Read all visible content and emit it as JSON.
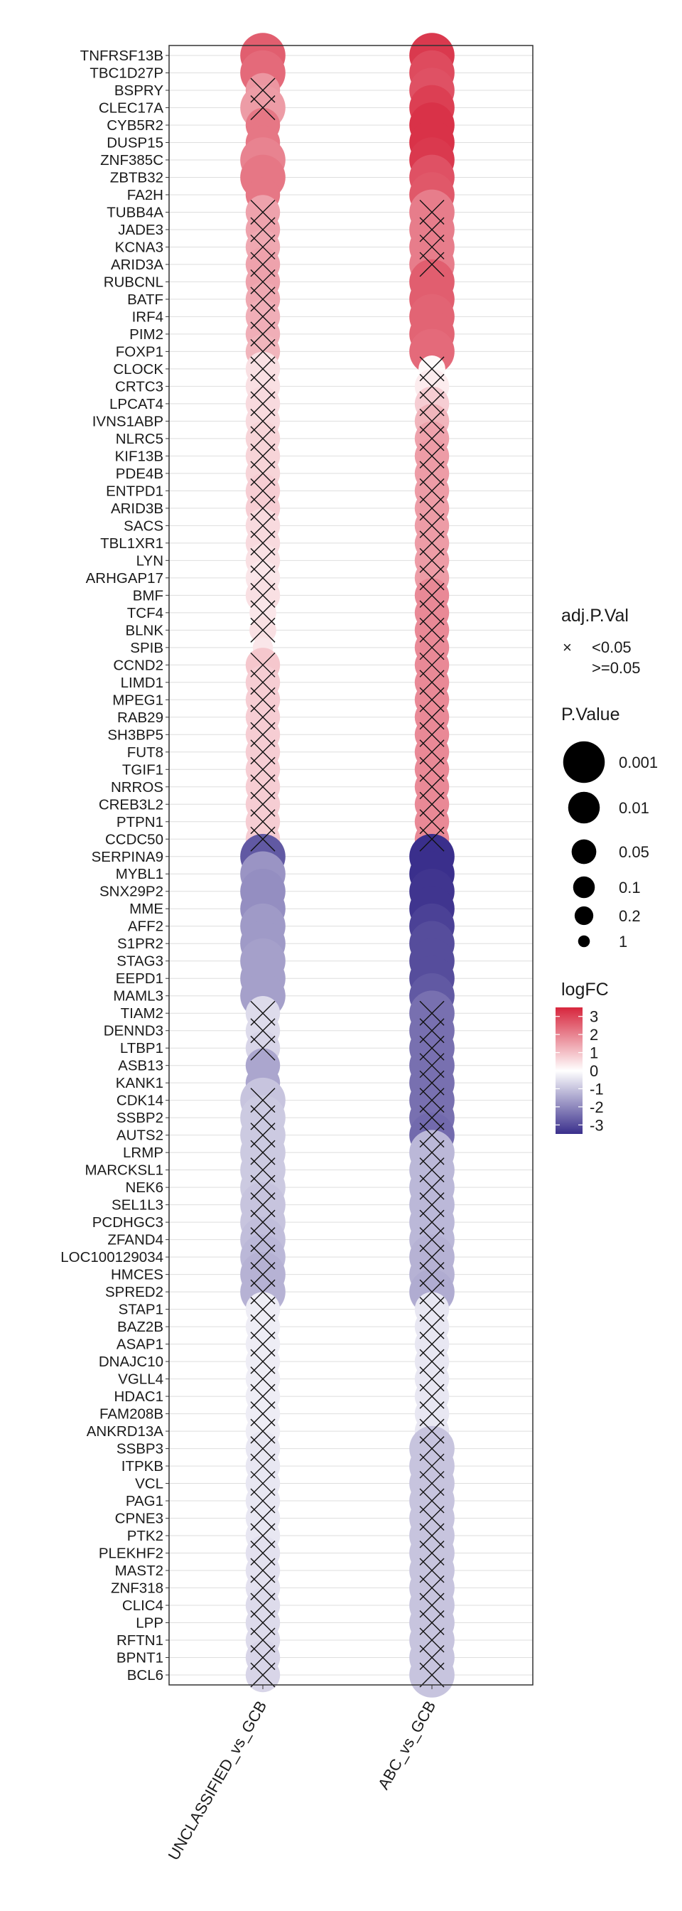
{
  "chart_data": {
    "type": "dot",
    "xlabel": "",
    "ylabel": "",
    "categories_x": [
      "UNCLASSIFIED_vs_GCB",
      "ABC_vs_GCB"
    ],
    "genes": [
      "TNFRSF13B",
      "TBC1D27P",
      "BSPRY",
      "CLEC17A",
      "CYB5R2",
      "DUSP15",
      "ZNF385C",
      "ZBTB32",
      "FA2H",
      "TUBB4A",
      "JADE3",
      "KCNA3",
      "ARID3A",
      "RUBCNL",
      "BATF",
      "IRF4",
      "PIM2",
      "FOXP1",
      "CLOCK",
      "CRTC3",
      "LPCAT4",
      "IVNS1ABP",
      "NLRC5",
      "KIF13B",
      "PDE4B",
      "ENTPD1",
      "ARID3B",
      "SACS",
      "TBL1XR1",
      "LYN",
      "ARHGAP17",
      "BMF",
      "TCF4",
      "BLNK",
      "SPIB",
      "CCND2",
      "LIMD1",
      "MPEG1",
      "RAB29",
      "SH3BP5",
      "FUT8",
      "TGIF1",
      "NRROS",
      "CREB3L2",
      "PTPN1",
      "CCDC50",
      "SERPINA9",
      "MYBL1",
      "SNX29P2",
      "MME",
      "AFF2",
      "S1PR2",
      "STAG3",
      "EEPD1",
      "MAML3",
      "TIAM2",
      "DENND3",
      "LTBP1",
      "ASB13",
      "KANK1",
      "CDK14",
      "SSBP2",
      "AUTS2",
      "LRMP",
      "MARCKSL1",
      "NEK6",
      "SEL1L3",
      "PCDHGC3",
      "ZFAND4",
      "LOC100129034",
      "HMCES",
      "SPRED2",
      "STAP1",
      "BAZ2B",
      "ASAP1",
      "DNAJC10",
      "VGLL4",
      "HDAC1",
      "FAM208B",
      "ANKRD13A",
      "SSBP3",
      "ITPKB",
      "VCL",
      "PAG1",
      "CPNE3",
      "PTK2",
      "PLEKHF2",
      "MAST2",
      "ZNF318",
      "CLIC4",
      "LPP",
      "RFTN1",
      "BPNT1",
      "BCL6"
    ],
    "series": [
      {
        "name": "UNCLASSIFIED_vs_GCB",
        "logFC": [
          2.6,
          2.4,
          1.7,
          1.6,
          2.2,
          2.2,
          2.0,
          2.2,
          2.2,
          1.5,
          1.5,
          1.4,
          1.5,
          1.5,
          1.4,
          1.3,
          1.3,
          1.2,
          0.5,
          0.5,
          0.6,
          0.6,
          0.7,
          0.7,
          0.7,
          0.8,
          0.8,
          0.6,
          0.6,
          0.5,
          0.4,
          0.5,
          0.4,
          0.5,
          0.4,
          0.9,
          0.8,
          0.8,
          0.8,
          0.8,
          0.8,
          0.8,
          0.8,
          0.8,
          0.8,
          0.8,
          -2.8,
          -1.8,
          -1.9,
          -1.9,
          -1.7,
          -1.7,
          -1.6,
          -1.6,
          -1.6,
          -0.6,
          -0.6,
          -0.7,
          -1.5,
          -1.5,
          -1.0,
          -0.9,
          -0.9,
          -0.9,
          -0.9,
          -0.9,
          -1.0,
          -1.0,
          -1.1,
          -1.2,
          -1.3,
          -1.3,
          -0.3,
          -0.3,
          -0.3,
          -0.3,
          -0.3,
          -0.3,
          -0.3,
          -0.3,
          -0.4,
          -0.4,
          -0.4,
          -0.4,
          -0.4,
          -0.4,
          -0.5,
          -0.5,
          -0.5,
          -0.6,
          -0.6,
          -0.6,
          -0.7,
          -0.7
        ],
        "p_value": [
          0.001,
          0.001,
          0.01,
          0.001,
          0.01,
          0.01,
          0.001,
          0.001,
          0.01,
          0.01,
          0.01,
          0.01,
          0.01,
          0.01,
          0.01,
          0.01,
          0.01,
          0.01,
          0.01,
          0.01,
          0.01,
          0.01,
          0.01,
          0.01,
          0.01,
          0.01,
          0.01,
          0.01,
          0.01,
          0.01,
          0.01,
          0.01,
          0.05,
          0.05,
          0.2,
          0.01,
          0.01,
          0.01,
          0.01,
          0.01,
          0.01,
          0.01,
          0.01,
          0.01,
          0.01,
          0.01,
          0.001,
          0.001,
          0.001,
          0.001,
          0.001,
          0.001,
          0.001,
          0.001,
          0.001,
          0.01,
          0.01,
          0.01,
          0.01,
          0.01,
          0.001,
          0.001,
          0.001,
          0.001,
          0.001,
          0.001,
          0.001,
          0.001,
          0.001,
          0.001,
          0.001,
          0.001,
          0.01,
          0.01,
          0.01,
          0.01,
          0.01,
          0.01,
          0.01,
          0.01,
          0.01,
          0.01,
          0.01,
          0.01,
          0.01,
          0.01,
          0.01,
          0.01,
          0.01,
          0.01,
          0.01,
          0.01,
          0.01,
          0.01
        ],
        "adj_p_lt_0_05": [
          false,
          false,
          true,
          true,
          false,
          false,
          false,
          false,
          false,
          true,
          true,
          true,
          true,
          true,
          true,
          true,
          true,
          true,
          true,
          true,
          true,
          true,
          true,
          true,
          true,
          true,
          true,
          true,
          true,
          true,
          true,
          true,
          true,
          true,
          false,
          true,
          true,
          true,
          true,
          true,
          true,
          true,
          true,
          true,
          true,
          true,
          false,
          false,
          false,
          false,
          false,
          false,
          false,
          false,
          false,
          true,
          true,
          true,
          false,
          false,
          true,
          true,
          true,
          true,
          true,
          true,
          true,
          true,
          true,
          true,
          true,
          true,
          true,
          true,
          true,
          true,
          true,
          true,
          true,
          true,
          true,
          true,
          true,
          true,
          true,
          true,
          true,
          true,
          true,
          true,
          true,
          true,
          true,
          true
        ]
      },
      {
        "name": "ABC_vs_GCB",
        "logFC": [
          3.2,
          2.9,
          2.8,
          3.1,
          3.3,
          3.3,
          3.2,
          2.8,
          2.7,
          2.1,
          2.1,
          2.1,
          2.1,
          2.6,
          2.6,
          2.5,
          2.5,
          2.4,
          0.1,
          0.3,
          0.8,
          1.2,
          1.5,
          1.6,
          1.6,
          1.6,
          1.6,
          1.6,
          1.6,
          1.6,
          1.6,
          1.9,
          1.9,
          1.9,
          1.9,
          1.9,
          1.9,
          1.9,
          1.9,
          1.9,
          1.9,
          1.9,
          1.9,
          1.9,
          1.9,
          1.9,
          -3.5,
          -3.5,
          -3.4,
          -3.4,
          -3.2,
          -3.0,
          -3.0,
          -3.0,
          -2.8,
          -2.4,
          -2.4,
          -2.4,
          -2.4,
          -2.4,
          -2.4,
          -2.4,
          -2.5,
          -1.2,
          -1.2,
          -1.2,
          -1.2,
          -1.2,
          -1.2,
          -1.3,
          -1.3,
          -1.4,
          -0.4,
          -0.4,
          -0.4,
          -0.4,
          -0.4,
          -0.4,
          -0.4,
          -0.4,
          -1.0,
          -1.0,
          -1.0,
          -1.0,
          -1.0,
          -1.0,
          -1.0,
          -1.0,
          -1.0,
          -1.0,
          -1.0,
          -1.0,
          -1.0,
          -1.0
        ],
        "p_value": [
          0.001,
          0.001,
          0.001,
          0.001,
          0.001,
          0.001,
          0.001,
          0.001,
          0.001,
          0.001,
          0.001,
          0.001,
          0.001,
          0.001,
          0.001,
          0.001,
          0.001,
          0.001,
          0.05,
          0.01,
          0.01,
          0.01,
          0.01,
          0.01,
          0.01,
          0.01,
          0.01,
          0.01,
          0.01,
          0.01,
          0.01,
          0.01,
          0.01,
          0.01,
          0.01,
          0.01,
          0.01,
          0.01,
          0.01,
          0.01,
          0.01,
          0.01,
          0.01,
          0.01,
          0.01,
          0.01,
          0.001,
          0.001,
          0.001,
          0.001,
          0.001,
          0.001,
          0.001,
          0.001,
          0.001,
          0.001,
          0.001,
          0.001,
          0.001,
          0.001,
          0.001,
          0.001,
          0.001,
          0.001,
          0.001,
          0.001,
          0.001,
          0.001,
          0.001,
          0.001,
          0.001,
          0.001,
          0.01,
          0.01,
          0.01,
          0.01,
          0.01,
          0.01,
          0.01,
          0.01,
          0.001,
          0.001,
          0.001,
          0.001,
          0.001,
          0.001,
          0.001,
          0.001,
          0.001,
          0.001,
          0.001,
          0.001,
          0.001,
          0.001
        ],
        "adj_p_lt_0_05": [
          false,
          false,
          false,
          false,
          false,
          false,
          false,
          false,
          false,
          true,
          true,
          true,
          true,
          false,
          false,
          false,
          false,
          false,
          true,
          true,
          true,
          true,
          true,
          true,
          true,
          true,
          true,
          true,
          true,
          true,
          true,
          true,
          true,
          true,
          true,
          true,
          true,
          true,
          true,
          true,
          true,
          true,
          true,
          true,
          true,
          true,
          false,
          false,
          false,
          false,
          false,
          false,
          false,
          false,
          false,
          true,
          true,
          true,
          true,
          true,
          true,
          true,
          true,
          true,
          true,
          true,
          true,
          true,
          true,
          true,
          true,
          true,
          true,
          true,
          true,
          true,
          true,
          true,
          true,
          true,
          true,
          true,
          true,
          true,
          true,
          true,
          true,
          true,
          true,
          true,
          true,
          true,
          true,
          true
        ]
      }
    ],
    "legend": {
      "shape_title": "adj.P.Val",
      "shape_entries": [
        {
          "symbol": "×",
          "label": "<0.05"
        },
        {
          "symbol": "",
          "label": ">=0.05"
        }
      ],
      "size_title": "P.Value",
      "size_entries": [
        {
          "p": 0.001,
          "label": "0.001"
        },
        {
          "p": 0.01,
          "label": "0.01"
        },
        {
          "p": 0.05,
          "label": "0.05"
        },
        {
          "p": 0.1,
          "label": "0.1"
        },
        {
          "p": 0.2,
          "label": "0.2"
        },
        {
          "p": 1,
          "label": "1"
        }
      ],
      "color_title": "logFC",
      "color_ticks": [
        "3",
        "2",
        "1",
        "0",
        "-1",
        "-2",
        "-3"
      ],
      "color_range": [
        -3.5,
        3.5
      ],
      "colors": {
        "high": "#d7263d",
        "mid": "#ffffff",
        "low": "#3a2f8c"
      },
      "placement": "right"
    },
    "grid": true
  }
}
